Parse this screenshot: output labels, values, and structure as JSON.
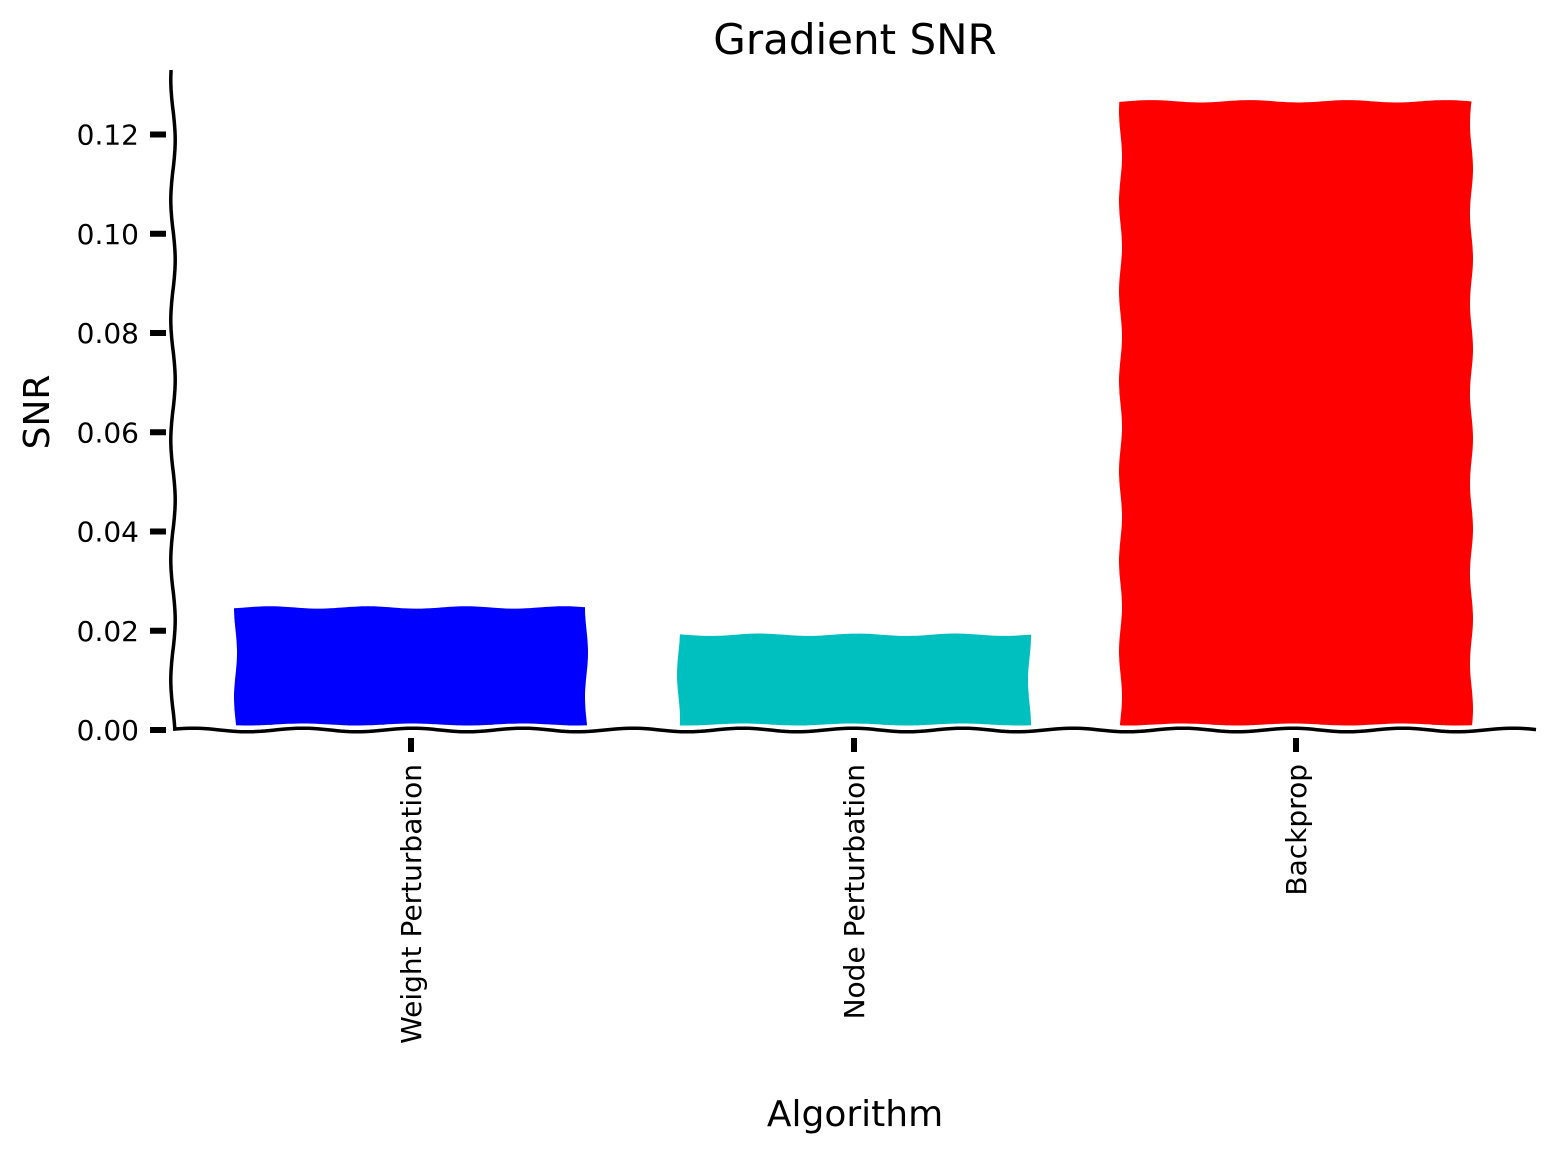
{
  "chart_data": {
    "type": "bar",
    "title": "Gradient SNR",
    "xlabel": "Algorithm",
    "ylabel": "SNR",
    "categories": [
      "Weight Perturbation",
      "Node Perturbation",
      "Backprop"
    ],
    "values": [
      0.025,
      0.0195,
      0.127
    ],
    "colors": [
      "#0000ff",
      "#00bfbf",
      "#ff0000"
    ],
    "ylim": [
      0,
      0.133
    ],
    "yticks": [
      0.0,
      0.02,
      0.04,
      0.06,
      0.08,
      0.1,
      0.12
    ],
    "ytick_labels": [
      "0.00",
      "0.02",
      "0.04",
      "0.06",
      "0.08",
      "0.10",
      "0.12"
    ],
    "grid": false,
    "legend": "none",
    "style": "xkcd"
  }
}
